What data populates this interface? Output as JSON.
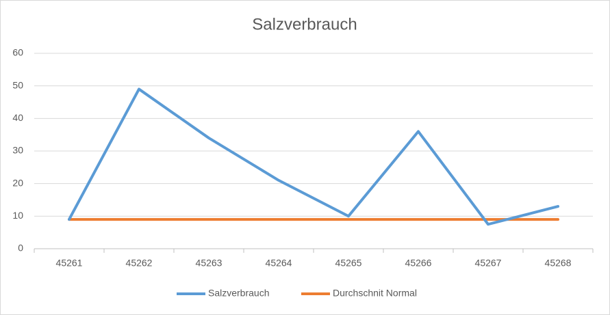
{
  "chart_data": {
    "type": "line",
    "title": "Salzverbrauch",
    "categories": [
      "45261",
      "45262",
      "45263",
      "45264",
      "45265",
      "45266",
      "45267",
      "45268"
    ],
    "series": [
      {
        "name": "Salzverbrauch",
        "color": "#5b9bd5",
        "values": [
          9,
          49,
          34,
          21,
          10,
          36,
          7.5,
          13
        ]
      },
      {
        "name": "Durchschnit Normal",
        "color": "#ed7d31",
        "values": [
          9,
          9,
          9,
          9,
          9,
          9,
          9,
          9
        ]
      }
    ],
    "ylim": [
      0,
      60
    ],
    "yticks": [
      0,
      10,
      20,
      30,
      40,
      50,
      60
    ],
    "grid": true,
    "legend": "bottom"
  }
}
